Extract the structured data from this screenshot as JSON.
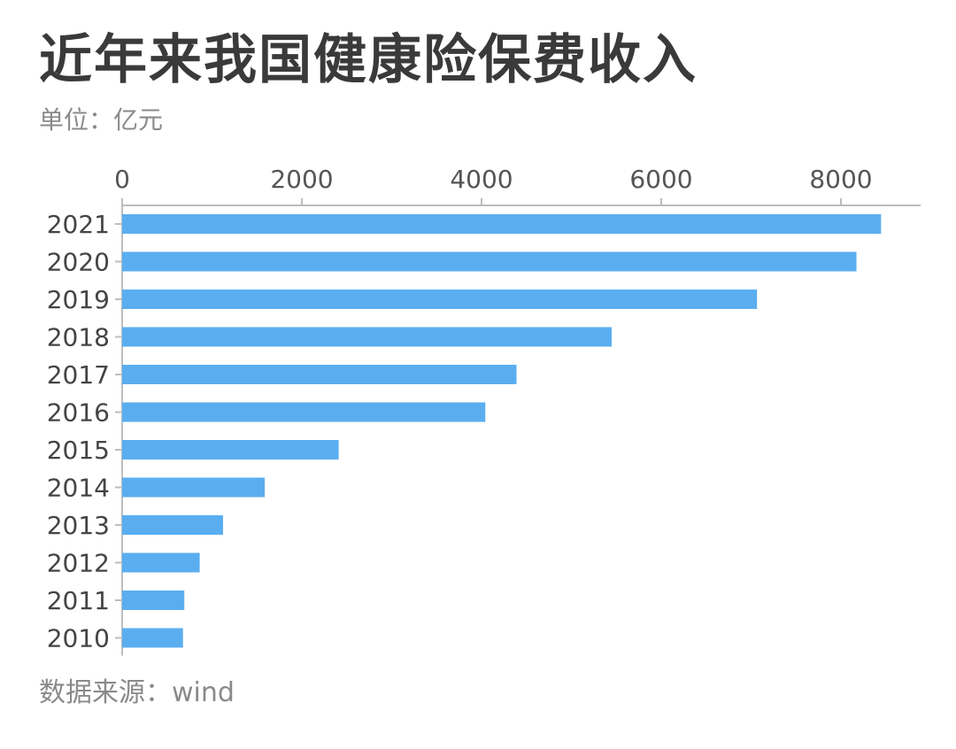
{
  "header": {
    "title": "近年来我国健康险保费收入",
    "unit": "单位：亿元"
  },
  "footer": {
    "source": "数据来源：wind"
  },
  "chart_data": {
    "type": "bar",
    "orientation": "horizontal",
    "title": "近年来我国健康险保费收入",
    "subtitle": "单位：亿元",
    "categories": [
      "2021",
      "2020",
      "2019",
      "2018",
      "2017",
      "2016",
      "2015",
      "2014",
      "2013",
      "2012",
      "2011",
      "2010"
    ],
    "values": [
      8447,
      8173,
      7066,
      5448,
      4389,
      4042,
      2410,
      1587,
      1123,
      863,
      692,
      677
    ],
    "xlim": [
      0,
      8800
    ],
    "xticks": [
      "0",
      "2000",
      "4000",
      "6000",
      "8000"
    ],
    "xtick_values": [
      0,
      2000,
      4000,
      6000,
      8000
    ],
    "xaxis_position": "top",
    "grid": false,
    "legend": "none",
    "bar_color": "#5aaef0",
    "axis_color": "#bdbdbd"
  }
}
